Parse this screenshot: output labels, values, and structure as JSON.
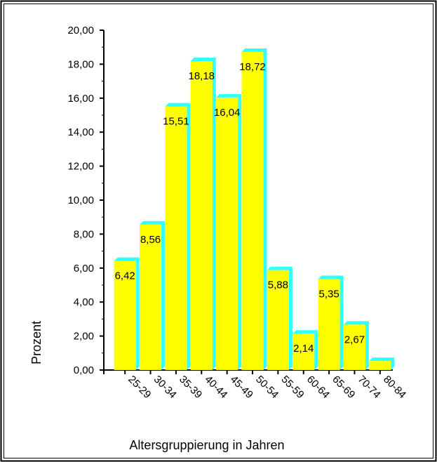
{
  "chart_data": {
    "type": "bar",
    "categories": [
      "25-29",
      "30-34",
      "35-39",
      "40-44",
      "45-49",
      "50-54",
      "55-59",
      "60-64",
      "65-69",
      "70-74",
      "80-84"
    ],
    "values": [
      6.42,
      8.56,
      15.51,
      18.18,
      16.04,
      18.72,
      5.88,
      2.14,
      5.35,
      2.67,
      0.53
    ],
    "data_labels": [
      "6,42",
      "8,56",
      "15,51",
      "18,18",
      "16,04",
      "18,72",
      "5,88",
      "2,14",
      "5,35",
      "2,67",
      ""
    ],
    "ylabel": "Prozent",
    "xlabel": "Altersgruppierung in Jahren",
    "ylim": [
      0,
      20
    ],
    "yticks": [
      0,
      2,
      4,
      6,
      8,
      10,
      12,
      14,
      16,
      18,
      20
    ],
    "ytick_labels": [
      "0,00",
      "2,00",
      "4,00",
      "6,00",
      "8,00",
      "10,00",
      "12,00",
      "14,00",
      "16,00",
      "18,00",
      "20,00"
    ],
    "grid": false,
    "colors": {
      "bar_face": "#ffff00",
      "bar_side": "#33ffff",
      "axis": "#000000",
      "frame": "#000000"
    }
  }
}
